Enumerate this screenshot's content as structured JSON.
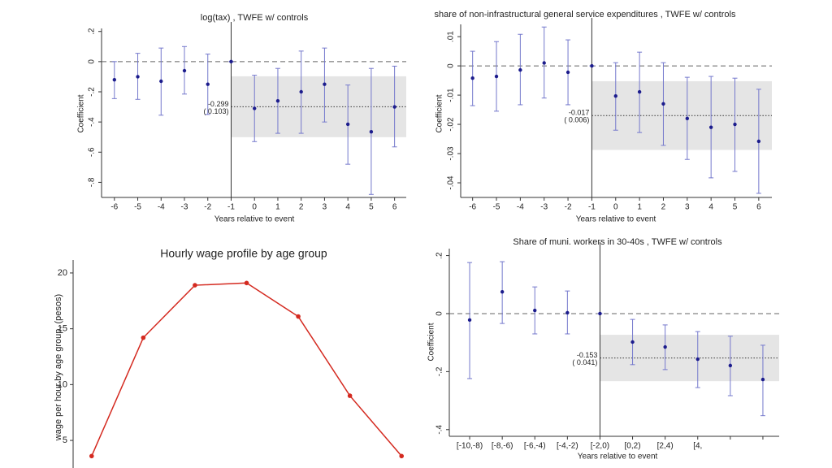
{
  "chart_data": [
    {
      "type": "coefplot",
      "title": "log(tax) , TWFE w/ controls",
      "x_label": "Years relative to event",
      "y_label": "Coefficient",
      "x": [
        -6,
        -5,
        -4,
        -3,
        -2,
        -1,
        0,
        1,
        2,
        3,
        4,
        5,
        6
      ],
      "xlim": [
        -6.55,
        6.5
      ],
      "xticks": [
        -6,
        -5,
        -4,
        -3,
        -2,
        -1,
        0,
        1,
        2,
        3,
        4,
        5,
        6
      ],
      "ylim": [
        -0.9,
        0.22
      ],
      "yticks": [
        {
          "value": 0.2,
          "label": ".2"
        },
        0,
        {
          "value": -0.2,
          "label": "-.2"
        },
        {
          "value": -0.4,
          "label": "-.4"
        },
        {
          "value": -0.6,
          "label": "-.6"
        },
        {
          "value": -0.8,
          "label": "-.8"
        }
      ],
      "series": [
        {
          "color": "#1c1c8c",
          "ci_color": "#7478cc",
          "values": [
            -0.12,
            -0.1,
            -0.13,
            -0.06,
            -0.15,
            0,
            -0.31,
            -0.26,
            -0.2,
            -0.15,
            -0.415,
            -0.465,
            -0.3
          ],
          "ci_high": [
            0.0,
            0.055,
            0.09,
            0.1,
            0.05,
            0,
            -0.09,
            -0.045,
            0.07,
            0.09,
            -0.155,
            -0.045,
            -0.03
          ],
          "ci_low": [
            -0.245,
            -0.25,
            -0.355,
            -0.215,
            -0.35,
            0,
            -0.53,
            -0.475,
            -0.475,
            -0.4,
            -0.68,
            -0.88,
            -0.565
          ]
        }
      ],
      "hline": 0,
      "event_x": -1,
      "ate": -0.299,
      "se_label": "( 0.103)",
      "band": [
        -0.501,
        -0.097
      ]
    },
    {
      "type": "coefplot",
      "title": "share of non-infrastructural general service expenditures , TWFE w/ controls",
      "x_label": "Years relative to event",
      "y_label": "Coefficient",
      "x": [
        -6,
        -5,
        -4,
        -3,
        -2,
        -1,
        0,
        1,
        2,
        3,
        4,
        5,
        6
      ],
      "xlim": [
        -6.5,
        6.55
      ],
      "xticks": [
        -6,
        -5,
        -4,
        -3,
        -2,
        -1,
        0,
        1,
        2,
        3,
        4,
        5,
        6
      ],
      "ylim": [
        -0.045,
        0.0142
      ],
      "yticks": [
        {
          "value": 0.01,
          "label": ".01"
        },
        0,
        {
          "value": -0.01,
          "label": "-.01"
        },
        {
          "value": -0.02,
          "label": "-.02"
        },
        {
          "value": -0.03,
          "label": "-.03"
        },
        {
          "value": -0.04,
          "label": "-.04"
        }
      ],
      "series": [
        {
          "color": "#1c1c8c",
          "ci_color": "#7478cc",
          "values": [
            -0.0042,
            -0.0036,
            -0.0014,
            0.001,
            -0.0022,
            0,
            -0.0103,
            -0.0089,
            -0.013,
            -0.018,
            -0.021,
            -0.02,
            -0.0258
          ],
          "ci_high": [
            0.005,
            0.0083,
            0.0108,
            0.0133,
            0.0089,
            0,
            0.0011,
            0.0047,
            0.0011,
            -0.0039,
            -0.0036,
            -0.0042,
            -0.008
          ],
          "ci_low": [
            -0.0136,
            -0.0155,
            -0.0133,
            -0.011,
            -0.0133,
            0,
            -0.022,
            -0.0228,
            -0.0272,
            -0.032,
            -0.0383,
            -0.0361,
            -0.0436
          ]
        }
      ],
      "hline": 0,
      "event_x": -1,
      "ate": -0.017,
      "se_label": "( 0.006)",
      "band": [
        -0.02876,
        -0.00524
      ]
    },
    {
      "type": "line",
      "title": "Hourly wage profile by age group",
      "y_label": "wage per hour by age group, (pesos)",
      "categories": [
        null,
        null,
        null,
        null,
        null,
        null,
        null
      ],
      "ylim": [
        2.53,
        21.16
      ],
      "yticks": [
        5,
        10,
        15,
        20
      ],
      "series": [
        {
          "color": "#d42a20",
          "values": [
            3.6,
            14.2,
            18.9,
            19.1,
            16.1,
            9.0,
            3.6
          ]
        }
      ]
    },
    {
      "type": "coefplot",
      "title": "Share of muni. workers in 30-40s , TWFE w/ controls",
      "x_label": "Years relative to event",
      "y_label": "Coefficient",
      "categories": [
        "[-10,-8)",
        "[-8,-6)",
        "[-6,-4)",
        "[-4,-2)",
        "[-2,0)",
        "[0,2)",
        "[2,4)",
        "[4,",
        null,
        null
      ],
      "ylim": [
        -0.423,
        0.224
      ],
      "yticks": [
        {
          "value": 0.2,
          "label": ".2"
        },
        0,
        {
          "value": -0.2,
          "label": "-.2"
        },
        {
          "value": -0.4,
          "label": "-.4"
        }
      ],
      "series": [
        {
          "color": "#1c1c8c",
          "ci_color": "#7478cc",
          "values": [
            -0.022,
            0.075,
            0.011,
            0.003,
            0,
            -0.098,
            -0.115,
            -0.157,
            -0.179,
            -0.227
          ],
          "ci_high": [
            0.176,
            0.179,
            0.092,
            0.078,
            0,
            -0.02,
            -0.039,
            -0.062,
            -0.078,
            -0.109
          ],
          "ci_low": [
            -0.224,
            -0.034,
            -0.07,
            -0.07,
            0,
            -0.176,
            -0.193,
            -0.255,
            -0.283,
            -0.352
          ]
        }
      ],
      "hline": 0,
      "event_category": "[-2,0)",
      "ate": -0.153,
      "se_label": "( 0.041)",
      "band": [
        -0.233,
        -0.073
      ]
    }
  ]
}
